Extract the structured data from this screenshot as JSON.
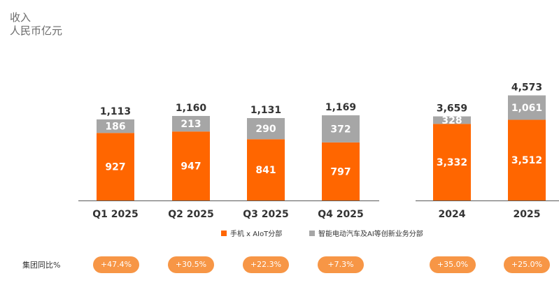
{
  "title": {
    "line1": "收入",
    "line2": "人民币亿元"
  },
  "colors": {
    "phone": "#ff6600",
    "ev": "#a6a6a6",
    "axis": "#595959",
    "pill": "#f79646"
  },
  "chart_data": [
    {
      "type": "bar",
      "stacked": true,
      "title": "收入 人民币亿元",
      "categories": [
        "Q1 2025",
        "Q2 2025",
        "Q3 2025",
        "Q4 2025"
      ],
      "series": [
        {
          "name": "手机 x AIoT分部",
          "values": [
            927,
            947,
            841,
            797
          ]
        },
        {
          "name": "智能电动汽车及AI等创新业务分部",
          "values": [
            186,
            213,
            290,
            372
          ]
        }
      ],
      "totals": [
        1113,
        1160,
        1131,
        1169
      ],
      "total_labels": [
        "1,113",
        "1,160",
        "1,131",
        "1,169"
      ],
      "segment_labels": [
        [
          "927",
          "947",
          "841",
          "797"
        ],
        [
          "186",
          "213",
          "290",
          "372"
        ]
      ],
      "ylim": [
        0,
        1300
      ]
    },
    {
      "type": "bar",
      "stacked": true,
      "categories": [
        "2024",
        "2025"
      ],
      "series": [
        {
          "name": "手机 x AIoT分部",
          "values": [
            3332,
            3512
          ]
        },
        {
          "name": "智能电动汽车及AI等创新业务分部",
          "values": [
            328,
            1061
          ]
        }
      ],
      "totals": [
        3659,
        4573
      ],
      "total_labels": [
        "3,659",
        "4,573"
      ],
      "segment_labels": [
        [
          "3,332",
          "3,512"
        ],
        [
          "328",
          "1,061"
        ]
      ],
      "ylim": [
        0,
        5000
      ]
    }
  ],
  "legend": [
    {
      "label": "手机 x AIoT分部",
      "color": "#ff6600"
    },
    {
      "label": "智能电动汽车及AI等创新业务分部",
      "color": "#a6a6a6"
    }
  ],
  "yoy": {
    "label": "集团同比%",
    "values": [
      "+47.4%",
      "+30.5%",
      "+22.3%",
      "+7.3%",
      "+35.0%",
      "+25.0%"
    ]
  }
}
